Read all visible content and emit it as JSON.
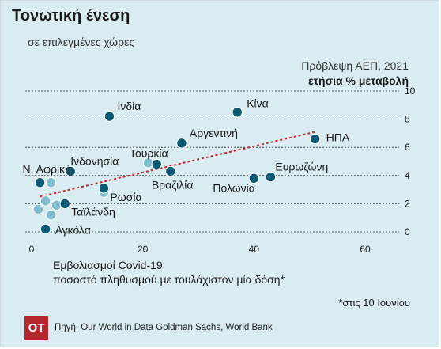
{
  "header": {
    "title": "Τονωτική ένεση",
    "subtitle": "σε επιλεγμένες χώρες"
  },
  "footer": {
    "note": "*στις 10 Ιουνίου",
    "logo": "OT",
    "source": "Πηγή: Our World in Data Goldman Sachs, World Bank"
  },
  "colors": {
    "background": "#d8ecf2",
    "point": "#0b5a73",
    "point_light": "#7fbccd",
    "trendline": "#c1272d",
    "logo": "#b3262c"
  },
  "chart_data": {
    "type": "scatter",
    "title": "Τονωτική ένεση",
    "subtitle": "σε επιλεγμένες χώρες",
    "ylabel": [
      "Πρόβλεψη ΑΕΠ, 2021",
      "ετήσια % μεταβολή"
    ],
    "xlabel": [
      "Εμβολιασμοί Covid-19",
      "ποσοστό πληθυσμού με τουλάχιστον μία δόση*"
    ],
    "xlim": [
      0,
      60
    ],
    "ylim": [
      0,
      10
    ],
    "xticks": [
      0,
      20,
      40,
      60
    ],
    "yticks": [
      0,
      2,
      4,
      6,
      8,
      10
    ],
    "grid": "horizontal dashed",
    "trendline": {
      "x": [
        1.5,
        51
      ],
      "y": [
        2.5,
        7.1
      ]
    },
    "points": [
      {
        "label": "Ινδία",
        "x": 14,
        "y": 8.2
      },
      {
        "label": "Κίνα",
        "x": 37,
        "y": 8.5
      },
      {
        "label": "ΗΠΑ",
        "x": 51,
        "y": 6.6
      },
      {
        "label": "Αργεντινή",
        "x": 27,
        "y": 6.3
      },
      {
        "label": "Τουρκία",
        "x": 22.5,
        "y": 4.8
      },
      {
        "label": "Ινδονησία",
        "x": 7,
        "y": 4.3
      },
      {
        "label": "Ν. Αφρική",
        "x": 1.5,
        "y": 3.5
      },
      {
        "label": "Βραζιλία",
        "x": 25,
        "y": 4.3
      },
      {
        "label": "Ρωσία",
        "x": 13,
        "y": 3.1
      },
      {
        "label": "Πολωνία",
        "x": 40,
        "y": 3.8
      },
      {
        "label": "Ευρωζώνη",
        "x": 43,
        "y": 3.9
      },
      {
        "label": "Ταϊλάνδη",
        "x": 6,
        "y": 2.0
      },
      {
        "label": "Αγκόλα",
        "x": 2.5,
        "y": 0.2
      },
      {
        "label": "",
        "x": 3.5,
        "y": 3.5,
        "light": true
      },
      {
        "label": "",
        "x": 2.5,
        "y": 2.2,
        "light": true
      },
      {
        "label": "",
        "x": 4.5,
        "y": 1.9,
        "light": true
      },
      {
        "label": "",
        "x": 1.2,
        "y": 1.6,
        "light": true
      },
      {
        "label": "",
        "x": 3.5,
        "y": 1.2,
        "light": true
      },
      {
        "label": "",
        "x": 13,
        "y": 2.8,
        "light": true
      },
      {
        "label": "",
        "x": 21,
        "y": 4.9,
        "light": true
      }
    ]
  }
}
